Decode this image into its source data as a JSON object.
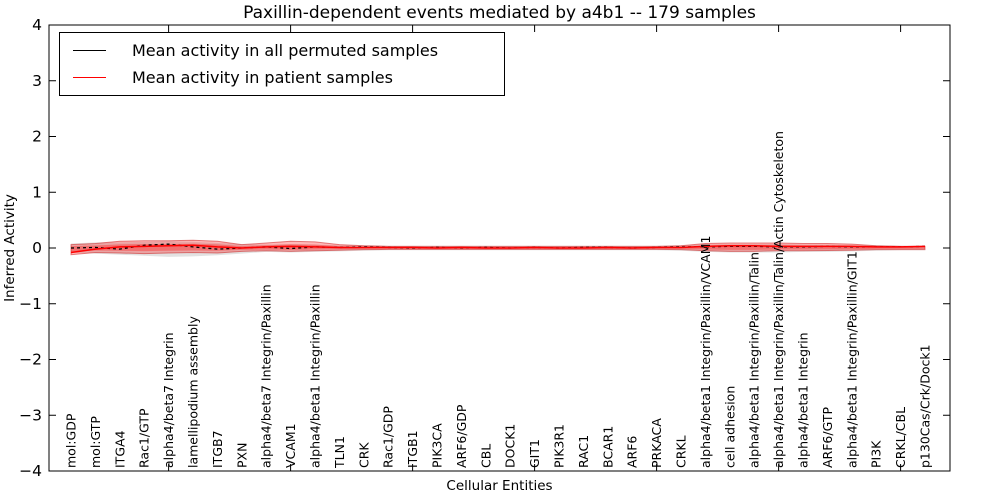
{
  "chart_data": {
    "type": "line",
    "title": "Paxillin-dependent events mediated by a4b1 -- 179 samples",
    "xlabel": "Cellular Entities",
    "ylabel": "Inferred Activity",
    "ylim": [
      -4,
      4
    ],
    "yticks": [
      4,
      3,
      2,
      1,
      0,
      -1,
      -2,
      -3,
      -4
    ],
    "top_tick_every": 5,
    "top_tick_start_index": 4,
    "grid": false,
    "categories": [
      "mol:GDP",
      "mol:GTP",
      "ITGA4",
      "Rac1/GTP",
      "alpha4/beta7 Integrin",
      "lamellipodium assembly",
      "ITGB7",
      "PXN",
      "alpha4/beta7 Integrin/Paxillin",
      "VCAM1",
      "alpha4/beta1 Integrin/Paxillin",
      "TLN1",
      "CRK",
      "Rac1/GDP",
      "ITGB1",
      "PIK3CA",
      "ARF6/GDP",
      "CBL",
      "DOCK1",
      "GIT1",
      "PIK3R1",
      "RAC1",
      "BCAR1",
      "ARF6",
      "PRKACA",
      "CRKL",
      "alpha4/beta1 Integrin/Paxillin/VCAM1",
      "cell adhesion",
      "alpha4/beta1 Integrin/Paxillin/Talin",
      "alpha4/beta1 Integrin/Paxillin/Talin/Actin Cytoskeleton",
      "alpha4/beta1 Integrin",
      "ARF6/GTP",
      "alpha4/beta1 Integrin/Paxillin/GIT1",
      "PI3K",
      "CRKL/CBL",
      "p130Cas/Crk/Dock1"
    ],
    "series": [
      {
        "name": "Mean activity in all permuted samples",
        "color": "#000000",
        "style": "dashed",
        "values": [
          0.0,
          0.01,
          -0.02,
          0.05,
          0.07,
          0.02,
          -0.02,
          0.0,
          0.02,
          -0.01,
          0.02,
          0.01,
          0.02,
          0.01,
          0.0,
          0.01,
          0.0,
          0.01,
          0.0,
          0.01,
          0.0,
          0.01,
          0.01,
          0.0,
          0.01,
          0.02,
          0.02,
          0.03,
          0.03,
          0.02,
          0.02,
          0.03,
          0.02,
          0.02,
          0.02,
          0.03
        ]
      },
      {
        "name": "Mean activity in patient samples",
        "color": "#ff0000",
        "style": "solid",
        "values": [
          -0.08,
          -0.02,
          0.02,
          0.03,
          0.04,
          0.05,
          0.02,
          0.0,
          0.02,
          0.03,
          0.02,
          0.01,
          0.01,
          0.01,
          0.01,
          0.0,
          0.01,
          0.0,
          0.0,
          0.01,
          0.0,
          0.0,
          0.01,
          0.0,
          0.01,
          0.01,
          0.03,
          0.04,
          0.04,
          0.03,
          0.03,
          0.03,
          0.03,
          0.02,
          0.02,
          0.03
        ]
      }
    ],
    "bands": [
      {
        "name": "permuted-samples-range",
        "color": "#a0a0a0",
        "opacity": 0.3,
        "upper": [
          0.08,
          0.1,
          0.1,
          0.11,
          0.12,
          0.11,
          0.09,
          0.07,
          0.06,
          0.07,
          0.06,
          0.05,
          0.05,
          0.04,
          0.04,
          0.04,
          0.04,
          0.04,
          0.04,
          0.04,
          0.04,
          0.04,
          0.04,
          0.04,
          0.04,
          0.05,
          0.06,
          0.07,
          0.07,
          0.07,
          0.06,
          0.06,
          0.05,
          0.05,
          0.04,
          0.04
        ],
        "lower": [
          -0.08,
          -0.1,
          -0.12,
          -0.14,
          -0.16,
          -0.15,
          -0.13,
          -0.1,
          -0.07,
          -0.08,
          -0.07,
          -0.06,
          -0.05,
          -0.04,
          -0.04,
          -0.04,
          -0.04,
          -0.04,
          -0.04,
          -0.04,
          -0.04,
          -0.04,
          -0.04,
          -0.04,
          -0.04,
          -0.05,
          -0.07,
          -0.08,
          -0.08,
          -0.08,
          -0.07,
          -0.07,
          -0.06,
          -0.05,
          -0.04,
          -0.04
        ]
      },
      {
        "name": "patient-samples-range",
        "color": "#ff0000",
        "opacity": 0.28,
        "upper": [
          0.06,
          0.08,
          0.12,
          0.13,
          0.13,
          0.14,
          0.12,
          0.06,
          0.09,
          0.12,
          0.11,
          0.06,
          0.04,
          0.03,
          0.03,
          0.03,
          0.03,
          0.03,
          0.03,
          0.03,
          0.03,
          0.03,
          0.03,
          0.03,
          0.03,
          0.04,
          0.08,
          0.09,
          0.09,
          0.09,
          0.08,
          0.08,
          0.07,
          0.04,
          0.03,
          0.03
        ],
        "lower": [
          -0.12,
          -0.08,
          -0.09,
          -0.1,
          -0.09,
          -0.08,
          -0.09,
          -0.06,
          -0.05,
          -0.06,
          -0.05,
          -0.04,
          -0.03,
          -0.025,
          -0.025,
          -0.025,
          -0.025,
          -0.025,
          -0.025,
          -0.025,
          -0.025,
          -0.025,
          -0.025,
          -0.025,
          -0.025,
          -0.03,
          -0.05,
          -0.06,
          -0.06,
          -0.05,
          -0.05,
          -0.045,
          -0.04,
          -0.03,
          -0.03,
          -0.03
        ]
      }
    ],
    "legend": {
      "position": "upper left",
      "entries": [
        {
          "label": "Mean activity in all permuted samples",
          "color": "#000000"
        },
        {
          "label": "Mean activity in patient samples",
          "color": "#ff0000"
        }
      ]
    }
  }
}
